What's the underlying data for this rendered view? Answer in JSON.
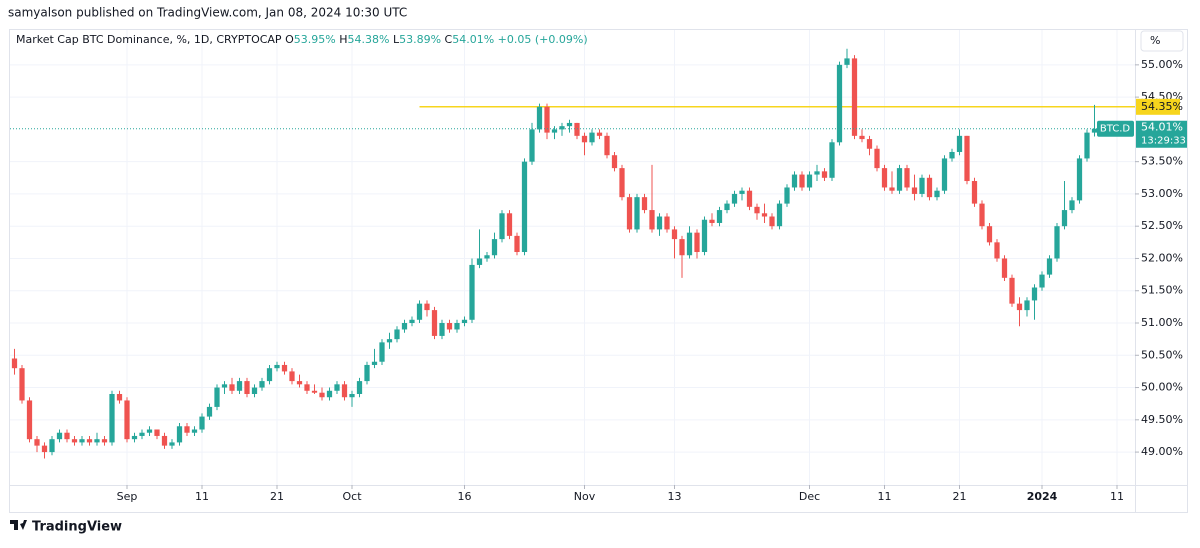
{
  "header": "samyalson published on TradingView.com, Jan 08, 2024 10:30 UTC",
  "brand": "TradingView",
  "chart_data": {
    "type": "candlestick",
    "title": "Market Cap BTC Dominance, %, 1D, CRYPTOCAP",
    "legend_values": [
      {
        "label": "O",
        "value": "53.95%"
      },
      {
        "label": "H",
        "value": "54.38%"
      },
      {
        "label": "L",
        "value": "53.89%"
      },
      {
        "label": "C",
        "value": "54.01%"
      },
      {
        "label": "",
        "value": "+0.05 (+0.09%)"
      }
    ],
    "unit_button": "%",
    "up_color": "#26a69a",
    "down_color": "#ef5350",
    "grid": true,
    "xlim": [
      -0.6,
      149.4
    ],
    "ylim": [
      48.49,
      55.54
    ],
    "xticks": [
      {
        "value": 15,
        "label": "Sep"
      },
      {
        "value": 25,
        "label": "11"
      },
      {
        "value": 35,
        "label": "21"
      },
      {
        "value": 45,
        "label": "Oct"
      },
      {
        "value": 60,
        "label": "16"
      },
      {
        "value": 76,
        "label": "Nov"
      },
      {
        "value": 88,
        "label": "13"
      },
      {
        "value": 106,
        "label": "Dec"
      },
      {
        "value": 116,
        "label": "11"
      },
      {
        "value": 126,
        "label": "21"
      },
      {
        "value": 137,
        "label": "2024"
      },
      {
        "value": 147,
        "label": "11"
      }
    ],
    "yticks": [
      {
        "value": 49,
        "label": "49.00%"
      },
      {
        "value": 49.5,
        "label": "49.50%"
      },
      {
        "value": 50,
        "label": "50.00%"
      },
      {
        "value": 50.5,
        "label": "50.50%"
      },
      {
        "value": 51,
        "label": "51.00%"
      },
      {
        "value": 51.5,
        "label": "51.50%"
      },
      {
        "value": 52,
        "label": "52.00%"
      },
      {
        "value": 52.5,
        "label": "52.50%"
      },
      {
        "value": 53,
        "label": "53.00%"
      },
      {
        "value": 53.5,
        "label": "53.50%"
      },
      {
        "value": 54.5,
        "label": "54.50%"
      },
      {
        "value": 55,
        "label": "55.00%"
      }
    ],
    "hline": {
      "value": 54.35,
      "label": "54.35%",
      "from": 54,
      "color": "#f7d51d"
    },
    "price_tag": {
      "symbol": "BTC.D",
      "label": "54.01%",
      "countdown": "13:29:33"
    },
    "ohlc": [
      [
        50.45,
        50.6,
        50.2,
        50.3
      ],
      [
        50.3,
        50.35,
        49.75,
        49.8
      ],
      [
        49.8,
        49.85,
        49.15,
        49.2
      ],
      [
        49.2,
        49.25,
        49.0,
        49.1
      ],
      [
        49.1,
        49.15,
        48.9,
        49.0
      ],
      [
        49.0,
        49.25,
        48.95,
        49.2
      ],
      [
        49.2,
        49.35,
        49.15,
        49.3
      ],
      [
        49.3,
        49.35,
        49.15,
        49.2
      ],
      [
        49.2,
        49.25,
        49.1,
        49.15
      ],
      [
        49.15,
        49.25,
        49.1,
        49.2
      ],
      [
        49.2,
        49.25,
        49.1,
        49.15
      ],
      [
        49.15,
        49.3,
        49.1,
        49.2
      ],
      [
        49.2,
        49.25,
        49.1,
        49.15
      ],
      [
        49.15,
        49.95,
        49.1,
        49.9
      ],
      [
        49.9,
        49.95,
        49.75,
        49.8
      ],
      [
        49.8,
        49.85,
        49.15,
        49.2
      ],
      [
        49.2,
        49.3,
        49.15,
        49.25
      ],
      [
        49.25,
        49.35,
        49.2,
        49.3
      ],
      [
        49.3,
        49.4,
        49.25,
        49.35
      ],
      [
        49.35,
        49.35,
        49.2,
        49.25
      ],
      [
        49.25,
        49.3,
        49.05,
        49.1
      ],
      [
        49.1,
        49.2,
        49.05,
        49.15
      ],
      [
        49.15,
        49.45,
        49.1,
        49.4
      ],
      [
        49.4,
        49.45,
        49.25,
        49.3
      ],
      [
        49.3,
        49.4,
        49.25,
        49.35
      ],
      [
        49.35,
        49.6,
        49.3,
        49.55
      ],
      [
        49.55,
        49.75,
        49.5,
        49.7
      ],
      [
        49.7,
        50.05,
        49.65,
        50.0
      ],
      [
        50.0,
        50.1,
        49.9,
        50.05
      ],
      [
        50.05,
        50.15,
        49.9,
        49.95
      ],
      [
        49.95,
        50.15,
        49.9,
        50.1
      ],
      [
        50.1,
        50.15,
        49.85,
        49.9
      ],
      [
        49.9,
        50.05,
        49.85,
        50.0
      ],
      [
        50.0,
        50.15,
        49.95,
        50.1
      ],
      [
        50.1,
        50.35,
        50.05,
        50.3
      ],
      [
        50.3,
        50.4,
        50.25,
        50.35
      ],
      [
        50.35,
        50.4,
        50.2,
        50.25
      ],
      [
        50.25,
        50.3,
        50.05,
        50.1
      ],
      [
        50.1,
        50.2,
        50.0,
        50.05
      ],
      [
        50.05,
        50.1,
        49.9,
        49.95
      ],
      [
        49.95,
        50.05,
        49.9,
        49.92
      ],
      [
        49.92,
        50.0,
        49.8,
        49.85
      ],
      [
        49.85,
        50.0,
        49.8,
        49.95
      ],
      [
        49.95,
        50.1,
        49.9,
        50.05
      ],
      [
        50.05,
        50.1,
        49.8,
        49.85
      ],
      [
        49.85,
        49.95,
        49.7,
        49.9
      ],
      [
        49.9,
        50.15,
        49.85,
        50.1
      ],
      [
        50.1,
        50.4,
        50.05,
        50.35
      ],
      [
        50.35,
        50.6,
        50.3,
        50.4
      ],
      [
        50.4,
        50.75,
        50.35,
        50.7
      ],
      [
        50.7,
        50.85,
        50.6,
        50.75
      ],
      [
        50.75,
        50.95,
        50.7,
        50.9
      ],
      [
        50.9,
        51.05,
        50.85,
        51.0
      ],
      [
        51.0,
        51.1,
        50.95,
        51.05
      ],
      [
        51.05,
        51.35,
        51.0,
        51.3
      ],
      [
        51.3,
        51.35,
        51.1,
        51.2
      ],
      [
        51.2,
        51.25,
        50.75,
        50.8
      ],
      [
        50.8,
        51.05,
        50.75,
        51.0
      ],
      [
        51.0,
        51.05,
        50.85,
        50.9
      ],
      [
        50.9,
        51.05,
        50.85,
        51.0
      ],
      [
        51.0,
        51.1,
        50.95,
        51.05
      ],
      [
        51.05,
        52.0,
        51.0,
        51.9
      ],
      [
        51.9,
        52.45,
        51.85,
        52.0
      ],
      [
        52.0,
        52.1,
        51.95,
        52.05
      ],
      [
        52.05,
        52.4,
        52.0,
        52.3
      ],
      [
        52.3,
        52.75,
        52.25,
        52.7
      ],
      [
        52.7,
        52.75,
        52.3,
        52.35
      ],
      [
        52.35,
        52.4,
        52.05,
        52.1
      ],
      [
        52.1,
        53.55,
        52.05,
        53.5
      ],
      [
        53.5,
        54.1,
        53.45,
        54.0
      ],
      [
        54.0,
        54.4,
        53.95,
        54.35
      ],
      [
        54.35,
        54.4,
        53.85,
        53.95
      ],
      [
        53.95,
        54.05,
        53.85,
        54.0
      ],
      [
        54.0,
        54.1,
        53.9,
        54.05
      ],
      [
        54.05,
        54.15,
        53.95,
        54.1
      ],
      [
        54.1,
        54.1,
        53.85,
        53.9
      ],
      [
        53.9,
        53.95,
        53.6,
        53.8
      ],
      [
        53.8,
        54.0,
        53.75,
        53.95
      ],
      [
        53.95,
        54.0,
        53.85,
        53.9
      ],
      [
        53.9,
        53.95,
        53.55,
        53.6
      ],
      [
        53.6,
        53.65,
        53.35,
        53.4
      ],
      [
        53.4,
        53.45,
        52.9,
        52.95
      ],
      [
        52.95,
        53.0,
        52.4,
        52.45
      ],
      [
        52.45,
        53.0,
        52.4,
        52.95
      ],
      [
        52.95,
        53.0,
        52.7,
        52.75
      ],
      [
        52.75,
        53.45,
        52.4,
        52.45
      ],
      [
        52.45,
        52.7,
        52.35,
        52.65
      ],
      [
        52.65,
        52.7,
        52.4,
        52.45
      ],
      [
        52.45,
        52.5,
        52.0,
        52.3
      ],
      [
        52.3,
        52.35,
        51.7,
        52.05
      ],
      [
        52.05,
        52.5,
        52.0,
        52.4
      ],
      [
        52.4,
        52.45,
        52.0,
        52.1
      ],
      [
        52.1,
        52.65,
        52.05,
        52.6
      ],
      [
        52.6,
        52.7,
        52.5,
        52.55
      ],
      [
        52.55,
        52.8,
        52.5,
        52.75
      ],
      [
        52.75,
        52.9,
        52.7,
        52.85
      ],
      [
        52.85,
        53.05,
        52.8,
        53.0
      ],
      [
        53.0,
        53.1,
        52.9,
        53.05
      ],
      [
        53.05,
        53.1,
        52.75,
        52.8
      ],
      [
        52.8,
        52.85,
        52.6,
        52.7
      ],
      [
        52.7,
        52.85,
        52.55,
        52.65
      ],
      [
        52.65,
        52.7,
        52.45,
        52.5
      ],
      [
        52.5,
        52.9,
        52.45,
        52.85
      ],
      [
        52.85,
        53.15,
        52.8,
        53.1
      ],
      [
        53.1,
        53.35,
        53.05,
        53.3
      ],
      [
        53.3,
        53.35,
        53.05,
        53.1
      ],
      [
        53.1,
        53.35,
        53.05,
        53.3
      ],
      [
        53.3,
        53.45,
        53.2,
        53.35
      ],
      [
        53.35,
        53.4,
        53.2,
        53.25
      ],
      [
        53.25,
        53.85,
        53.2,
        53.8
      ],
      [
        53.8,
        55.05,
        53.75,
        55.0
      ],
      [
        55.0,
        55.25,
        54.95,
        55.1
      ],
      [
        55.1,
        55.15,
        53.85,
        53.9
      ],
      [
        53.9,
        54.0,
        53.8,
        53.85
      ],
      [
        53.85,
        53.9,
        53.6,
        53.7
      ],
      [
        53.7,
        53.75,
        53.35,
        53.4
      ],
      [
        53.4,
        53.45,
        53.05,
        53.1
      ],
      [
        53.1,
        53.35,
        53.0,
        53.05
      ],
      [
        53.05,
        53.45,
        53.0,
        53.4
      ],
      [
        53.4,
        53.45,
        53.05,
        53.1
      ],
      [
        53.1,
        53.3,
        52.9,
        53.0
      ],
      [
        53.0,
        53.3,
        52.95,
        53.25
      ],
      [
        53.25,
        53.3,
        52.9,
        52.95
      ],
      [
        52.95,
        53.1,
        52.9,
        53.05
      ],
      [
        53.05,
        53.6,
        53.0,
        53.55
      ],
      [
        53.55,
        53.7,
        53.5,
        53.65
      ],
      [
        53.65,
        54.0,
        53.6,
        53.9
      ],
      [
        53.9,
        53.9,
        53.15,
        53.2
      ],
      [
        53.2,
        53.25,
        52.8,
        52.85
      ],
      [
        52.85,
        52.9,
        52.45,
        52.5
      ],
      [
        52.5,
        52.55,
        52.2,
        52.25
      ],
      [
        52.25,
        52.3,
        51.95,
        52.0
      ],
      [
        52.0,
        52.05,
        51.65,
        51.7
      ],
      [
        51.7,
        51.75,
        51.25,
        51.3
      ],
      [
        51.3,
        51.4,
        50.95,
        51.2
      ],
      [
        51.2,
        51.4,
        51.1,
        51.35
      ],
      [
        51.35,
        51.6,
        51.05,
        51.55
      ],
      [
        51.55,
        51.8,
        51.5,
        51.75
      ],
      [
        51.75,
        52.05,
        51.7,
        52.0
      ],
      [
        52.0,
        52.55,
        51.95,
        52.5
      ],
      [
        52.5,
        53.2,
        52.45,
        52.75
      ],
      [
        52.75,
        52.95,
        52.7,
        52.9
      ],
      [
        52.9,
        53.6,
        52.85,
        53.55
      ],
      [
        53.55,
        54.0,
        53.5,
        53.95
      ],
      [
        53.95,
        54.38,
        53.89,
        54.01
      ]
    ]
  }
}
